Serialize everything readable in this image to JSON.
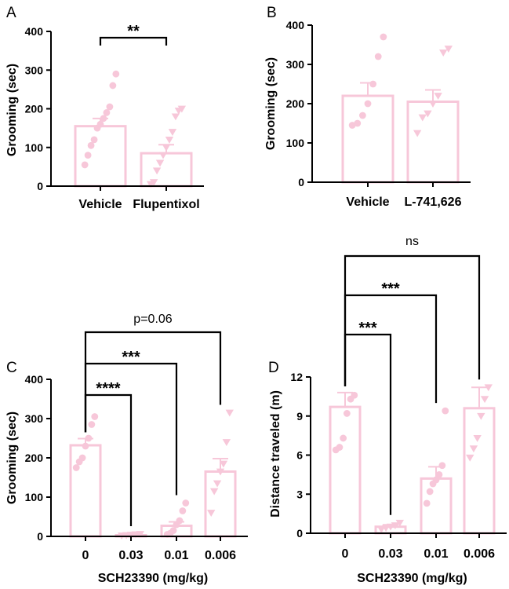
{
  "colors": {
    "bar": "#f7c7d9",
    "axis": "#000000"
  },
  "chart_data": [
    {
      "panel": "A",
      "type": "bar",
      "ylabel": "Grooming (sec)",
      "xlabel": "",
      "ylim": [
        0,
        400
      ],
      "yticks": [
        0,
        100,
        200,
        300,
        400
      ],
      "categories": [
        "Vehicle",
        "Flupentixol"
      ],
      "means": [
        155,
        85
      ],
      "sems": [
        20,
        22
      ],
      "markers": [
        "circle",
        "triangle"
      ],
      "points": [
        [
          55,
          80,
          105,
          120,
          150,
          160,
          175,
          190,
          205,
          260,
          290
        ],
        [
          5,
          10,
          40,
          60,
          80,
          100,
          120,
          140,
          180,
          195,
          200
        ]
      ],
      "comparisons": [
        {
          "from": 0,
          "to": 1,
          "label": "**"
        }
      ]
    },
    {
      "panel": "B",
      "type": "bar",
      "ylabel": "Grooming (sec)",
      "xlabel": "",
      "ylim": [
        0,
        400
      ],
      "yticks": [
        0,
        100,
        200,
        300,
        400
      ],
      "categories": [
        "Vehicle",
        "L-741,626"
      ],
      "means": [
        220,
        205
      ],
      "sems": [
        33,
        30
      ],
      "markers": [
        "circle",
        "triangle"
      ],
      "points": [
        [
          145,
          150,
          170,
          200,
          250,
          320,
          370
        ],
        [
          125,
          165,
          175,
          200,
          220,
          330,
          340
        ]
      ],
      "comparisons": []
    },
    {
      "panel": "C",
      "type": "bar",
      "ylabel": "Grooming (sec)",
      "xlabel": "SCH23390 (mg/kg)",
      "ylim": [
        0,
        400
      ],
      "yticks": [
        0,
        100,
        200,
        300,
        400
      ],
      "categories": [
        "0",
        "0.03",
        "0.01",
        "0.006"
      ],
      "means": [
        232,
        3,
        27,
        165
      ],
      "sems": [
        17,
        2,
        10,
        33
      ],
      "markers": [
        "circle",
        "triangle",
        "circle",
        "triangle"
      ],
      "points": [
        [
          175,
          190,
          200,
          230,
          250,
          285,
          305
        ],
        [
          2,
          3,
          4,
          5,
          6
        ],
        [
          5,
          8,
          15,
          30,
          40,
          65,
          85
        ],
        [
          60,
          115,
          135,
          165,
          185,
          240,
          315
        ]
      ],
      "comparisons": [
        {
          "from": 0,
          "to": 1,
          "label": "****"
        },
        {
          "from": 0,
          "to": 2,
          "label": "***"
        },
        {
          "from": 0,
          "to": 3,
          "label": "p=0.06"
        }
      ]
    },
    {
      "panel": "D",
      "type": "bar",
      "ylabel": "Distance traveled (m)",
      "xlabel": "SCH23390 (mg/kg)",
      "ylim": [
        0,
        12
      ],
      "yticks": [
        0,
        3,
        6,
        9,
        12
      ],
      "categories": [
        "0",
        "0.03",
        "0.01",
        "0.006"
      ],
      "means": [
        9.7,
        0.5,
        4.2,
        9.6
      ],
      "sems": [
        1.1,
        0.15,
        0.9,
        1.6
      ],
      "markers": [
        "circle",
        "triangle",
        "circle",
        "triangle"
      ],
      "points": [
        [
          6.4,
          6.6,
          7.3,
          9.2,
          10.3,
          10.6
        ],
        [
          0.3,
          0.4,
          0.5,
          0.6,
          0.8
        ],
        [
          2.3,
          3.2,
          3.8,
          4.1,
          4.5,
          5.2,
          9.4
        ],
        [
          5.8,
          6.5,
          7.3,
          9.0,
          10.3,
          11.2
        ]
      ],
      "comparisons": [
        {
          "from": 0,
          "to": 1,
          "label": "***"
        },
        {
          "from": 0,
          "to": 2,
          "label": "***"
        },
        {
          "from": 0,
          "to": 3,
          "label": "ns"
        }
      ]
    }
  ]
}
